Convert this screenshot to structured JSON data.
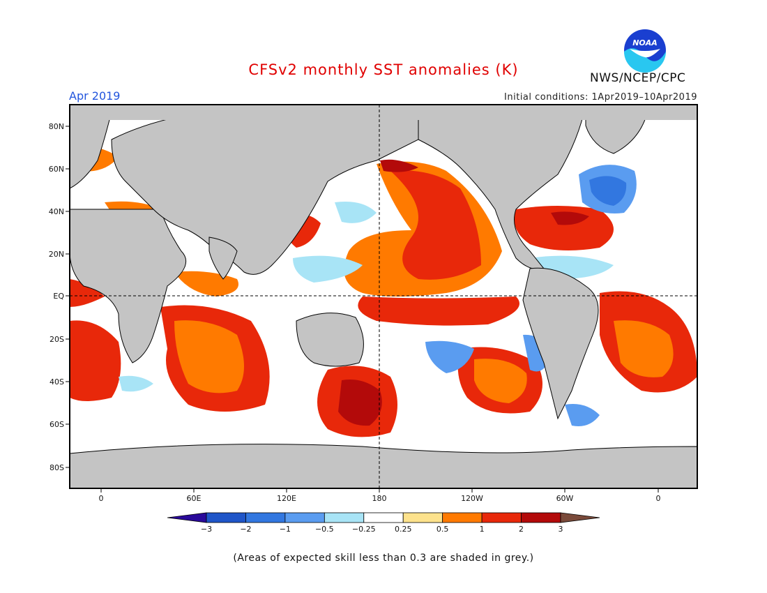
{
  "title": "CFSv2 monthly SST anomalies (K)",
  "forecast_month": "Apr 2019",
  "initial_conditions": "Initial conditions: 1Apr2019–10Apr2019",
  "agency": "NWS/NCEP/CPC",
  "logo_text": "NOAA",
  "caption": "(Areas of expected skill less than 0.3 are shaded in grey.)",
  "map": {
    "lat_labels": [
      "80N",
      "60N",
      "40N",
      "20N",
      "EQ",
      "20S",
      "40S",
      "60S",
      "80S"
    ],
    "lon_labels": [
      "0",
      "60E",
      "120E",
      "180",
      "120W",
      "60W",
      "0"
    ]
  },
  "legend": {
    "units": "K",
    "bins": [
      {
        "color": "#2a0a9a"
      },
      {
        "color": "#1f55c8",
        "label": "−3"
      },
      {
        "color": "#3277e0",
        "label": "−2"
      },
      {
        "color": "#5a9cf0",
        "label": "−1"
      },
      {
        "color": "#a8e4f6",
        "label": "−0.5"
      },
      {
        "color": "#ffffff",
        "label": "−0.25"
      },
      {
        "color": "#fde28c",
        "label": "0.25"
      },
      {
        "color": "#ff7a00",
        "label": "0.5"
      },
      {
        "color": "#e8280a",
        "label": "1"
      },
      {
        "color": "#b30a0a",
        "label": "2"
      },
      {
        "color": "#7a4a3a",
        "label": "3"
      }
    ]
  },
  "colors": {
    "land_grey": "#c4c4c4",
    "skill_grey": "#c4c4c4",
    "title_red": "#e00000",
    "month_blue": "#2255dd"
  }
}
